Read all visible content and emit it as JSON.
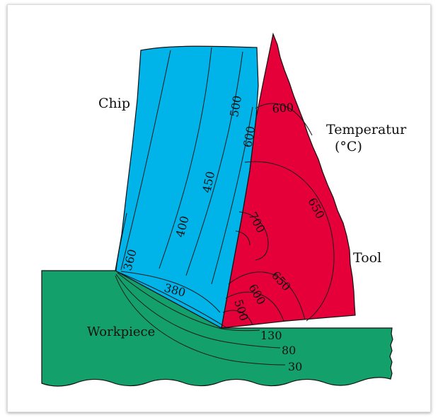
{
  "colors": {
    "chip": "#00b4ea",
    "tool": "#e6003a",
    "workpiece": "#14a06a",
    "outline": "#111111",
    "frame_border": "#dcdcdc"
  },
  "labels": {
    "chip": "Chip",
    "tool": "Tool",
    "workpiece": "Workpiece",
    "temperature_line1": "Temperatur",
    "temperature_line2": "(°C)"
  },
  "isotherms": {
    "chip_400": "400",
    "chip_450": "450",
    "chip_500": "500",
    "chip_600": "600",
    "chip_360": "360",
    "chip_380": "380",
    "tool_600_top": "600",
    "tool_650_right": "650",
    "tool_700": "700",
    "tool_650_bottom": "650",
    "tool_600_bottom": "600",
    "tool_500_bottom": "500",
    "work_130": "130",
    "work_80": "80",
    "work_30": "30"
  }
}
